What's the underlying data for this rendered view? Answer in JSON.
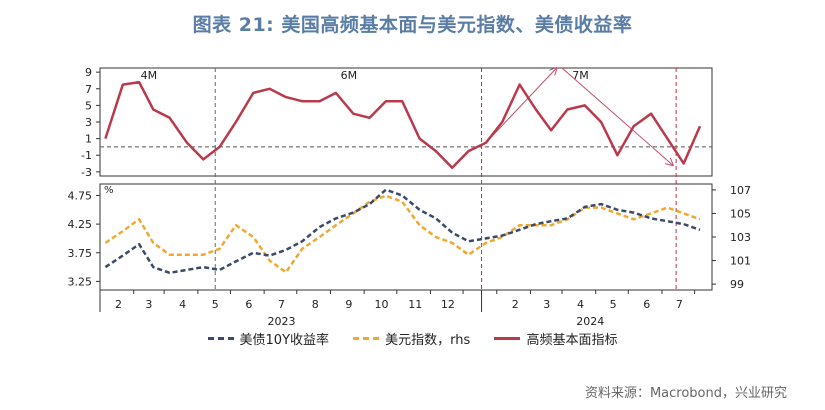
{
  "title": "图表 21: 美国高频基本面与美元指数、美债收益率",
  "source": "资料来源：Macrobond，兴业研究",
  "colors": {
    "index": "#b83a4b",
    "yield": "#3b4a6b",
    "dxy": "#f0a830",
    "divider": "#c0304a"
  },
  "legend": [
    {
      "label": "美债10Y收益率",
      "color": "#3b4a6b",
      "style": "dashed"
    },
    {
      "label": "美元指数，rhs",
      "color": "#f0a830",
      "style": "dashed"
    },
    {
      "label": "高频基本面指标",
      "color": "#b83a4b",
      "style": "solid"
    }
  ],
  "chart_data": {
    "type": "line",
    "x": [
      "2023-01-20",
      "2023-02-05",
      "2023-02-20",
      "2023-03-05",
      "2023-03-20",
      "2023-04-05",
      "2023-04-20",
      "2023-05-05",
      "2023-05-20",
      "2023-06-05",
      "2023-06-20",
      "2023-07-05",
      "2023-07-20",
      "2023-08-05",
      "2023-08-20",
      "2023-09-05",
      "2023-09-20",
      "2023-10-05",
      "2023-10-20",
      "2023-11-05",
      "2023-11-20",
      "2023-12-05",
      "2023-12-20",
      "2024-01-05",
      "2024-01-20",
      "2024-02-05",
      "2024-02-20",
      "2024-03-05",
      "2024-03-20",
      "2024-04-05",
      "2024-04-20",
      "2024-05-05",
      "2024-05-20",
      "2024-06-05",
      "2024-06-20",
      "2024-07-05",
      "2024-07-20"
    ],
    "x_tick_labels": [
      "2",
      "3",
      "4",
      "5",
      "6",
      "7",
      "8",
      "9",
      "10",
      "11",
      "12",
      "2",
      "3",
      "4",
      "5",
      "6",
      "7"
    ],
    "year_labels": [
      "2023",
      "2024"
    ],
    "top_panel": {
      "series": [
        {
          "name": "高频基本面指标",
          "values": [
            1.0,
            7.5,
            7.8,
            4.5,
            3.5,
            0.5,
            -1.5,
            0.0,
            3.0,
            6.5,
            7.0,
            6.0,
            5.5,
            5.5,
            6.5,
            4.0,
            3.5,
            5.5,
            5.5,
            1.0,
            -0.5,
            -2.5,
            -0.5,
            0.5,
            3.0,
            7.5,
            4.5,
            2.0,
            4.5,
            5.0,
            3.0,
            -1.0,
            2.5,
            4.0,
            1.0,
            -2.0,
            2.5
          ]
        }
      ],
      "ylim": [
        -3.5,
        9.5
      ],
      "yticks": [
        -3,
        -1,
        1,
        3,
        5,
        7,
        9
      ],
      "reference_line": 0,
      "period_labels": [
        "4M",
        "6M",
        "7M"
      ]
    },
    "bottom_panel": {
      "left_axis_label": "%",
      "left_ylim": [
        3.1,
        4.95
      ],
      "left_yticks": [
        "3.25",
        "3.75",
        "4.25",
        "4.75"
      ],
      "right_ylim": [
        98.5,
        107.5
      ],
      "right_yticks": [
        "99",
        "101",
        "103",
        "105",
        "107"
      ],
      "series": [
        {
          "name": "美债10Y收益率",
          "axis": "left",
          "values": [
            3.5,
            3.7,
            3.9,
            3.5,
            3.4,
            3.45,
            3.5,
            3.45,
            3.6,
            3.75,
            3.7,
            3.8,
            3.95,
            4.2,
            4.35,
            4.45,
            4.6,
            4.85,
            4.75,
            4.5,
            4.35,
            4.1,
            3.95,
            4.0,
            4.05,
            4.15,
            4.25,
            4.3,
            4.35,
            4.55,
            4.6,
            4.5,
            4.45,
            4.35,
            4.3,
            4.25,
            4.15
          ]
        },
        {
          "name": "美元指数，rhs",
          "axis": "right",
          "values": [
            102.5,
            103.5,
            104.5,
            102.5,
            101.5,
            101.5,
            101.5,
            102.0,
            104.0,
            103.0,
            101.0,
            100.0,
            102.0,
            103.0,
            104.0,
            105.0,
            106.0,
            106.5,
            106.0,
            104.0,
            103.0,
            102.5,
            101.5,
            102.5,
            103.0,
            104.0,
            104.0,
            104.0,
            104.5,
            105.5,
            105.5,
            105.0,
            104.5,
            105.0,
            105.5,
            105.0,
            104.5
          ]
        }
      ]
    }
  }
}
